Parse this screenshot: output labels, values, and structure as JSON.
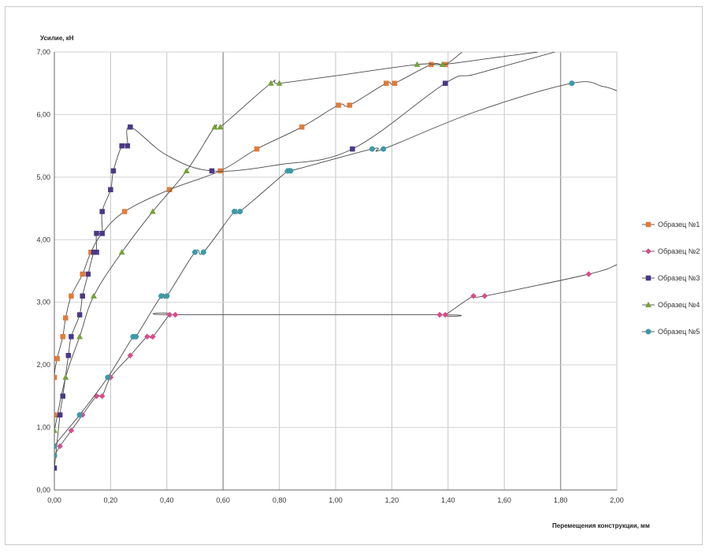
{
  "chart_data": {
    "type": "line",
    "title": "",
    "ylabel": "Усилие, кН",
    "xlabel": "Перемещения конструкции, мм",
    "xlim": [
      0,
      2.0
    ],
    "ylim": [
      0,
      7.0
    ],
    "x_ticks": [
      "0,00",
      "0,20",
      "0,40",
      "0,60",
      "0,80",
      "1,00",
      "1,20",
      "1,40",
      "1,60",
      "1,80",
      "2,00"
    ],
    "y_ticks": [
      "0,00",
      "1,00",
      "2,00",
      "3,00",
      "4,00",
      "5,00",
      "6,00",
      "7,00"
    ],
    "grid": "vertical",
    "legend_position": "right",
    "series": [
      {
        "name": "Образец №1",
        "color": "#E07B39",
        "marker": "square",
        "points": [
          [
            0,
            0.55
          ],
          [
            0,
            1.2
          ],
          [
            0,
            1.8
          ],
          [
            0.01,
            2.1
          ],
          [
            0.03,
            2.45
          ],
          [
            0.04,
            2.75
          ],
          [
            0.06,
            3.1
          ],
          [
            0.1,
            3.45
          ],
          [
            0.13,
            3.8
          ],
          [
            0.17,
            4.1
          ],
          [
            0.25,
            4.45
          ],
          [
            0.41,
            4.8
          ],
          [
            0.59,
            5.1
          ],
          [
            0.72,
            5.45
          ],
          [
            0.88,
            5.8
          ],
          [
            1.01,
            6.15
          ],
          [
            1.05,
            6.15
          ],
          [
            1.18,
            6.5
          ],
          [
            1.21,
            6.5
          ],
          [
            1.34,
            6.8
          ],
          [
            1.39,
            6.8
          ]
        ],
        "curve": [
          [
            0,
            0.55
          ],
          [
            0,
            1.2
          ],
          [
            0,
            1.8
          ],
          [
            0.01,
            2.1
          ],
          [
            0.03,
            2.45
          ],
          [
            0.04,
            2.75
          ],
          [
            0.06,
            3.1
          ],
          [
            0.1,
            3.45
          ],
          [
            0.13,
            3.8
          ],
          [
            0.17,
            4.1
          ],
          [
            0.25,
            4.45
          ],
          [
            0.41,
            4.8
          ],
          [
            0.59,
            5.1
          ],
          [
            0.72,
            5.45
          ],
          [
            0.88,
            5.8
          ],
          [
            1.01,
            6.15
          ],
          [
            1.05,
            6.15
          ],
          [
            1.18,
            6.5
          ],
          [
            1.21,
            6.5
          ],
          [
            1.34,
            6.8
          ],
          [
            1.39,
            6.8
          ],
          [
            1.45,
            7.0
          ]
        ]
      },
      {
        "name": "Образец №2",
        "color": "#D94C8A",
        "marker": "diamond",
        "points": [
          [
            0,
            0.55
          ],
          [
            0.02,
            0.7
          ],
          [
            0.06,
            0.95
          ],
          [
            0.1,
            1.2
          ],
          [
            0.15,
            1.5
          ],
          [
            0.17,
            1.5
          ],
          [
            0.2,
            1.8
          ],
          [
            0.27,
            2.15
          ],
          [
            0.33,
            2.45
          ],
          [
            0.35,
            2.45
          ],
          [
            0.41,
            2.8
          ],
          [
            0.43,
            2.8
          ],
          [
            1.37,
            2.8
          ],
          [
            1.39,
            2.8
          ],
          [
            1.49,
            3.1
          ],
          [
            1.53,
            3.1
          ],
          [
            1.9,
            3.45
          ]
        ],
        "curve": [
          [
            0,
            0.55
          ],
          [
            0.02,
            0.7
          ],
          [
            0.06,
            0.95
          ],
          [
            0.1,
            1.2
          ],
          [
            0.15,
            1.5
          ],
          [
            0.17,
            1.5
          ],
          [
            0.2,
            1.8
          ],
          [
            0.27,
            2.15
          ],
          [
            0.33,
            2.45
          ],
          [
            0.35,
            2.45
          ],
          [
            0.41,
            2.8
          ],
          [
            0.43,
            2.8
          ],
          [
            1.37,
            2.8
          ],
          [
            1.39,
            2.8
          ],
          [
            1.49,
            3.1
          ],
          [
            1.53,
            3.1
          ],
          [
            1.9,
            3.45
          ],
          [
            2.0,
            3.6
          ]
        ]
      },
      {
        "name": "Образец №3",
        "color": "#4A3886",
        "marker": "square",
        "points": [
          [
            0,
            0.35
          ],
          [
            0.02,
            1.2
          ],
          [
            0.03,
            1.5
          ],
          [
            0.05,
            2.15
          ],
          [
            0.06,
            2.45
          ],
          [
            0.09,
            2.8
          ],
          [
            0.1,
            3.1
          ],
          [
            0.12,
            3.45
          ],
          [
            0.14,
            3.8
          ],
          [
            0.15,
            3.8
          ],
          [
            0.15,
            4.1
          ],
          [
            0.17,
            4.1
          ],
          [
            0.17,
            4.45
          ],
          [
            0.2,
            4.8
          ],
          [
            0.21,
            5.1
          ],
          [
            0.24,
            5.5
          ],
          [
            0.26,
            5.5
          ],
          [
            0.27,
            5.8
          ],
          [
            0.56,
            5.1
          ],
          [
            1.06,
            5.45
          ],
          [
            1.39,
            6.5
          ]
        ],
        "curve": [
          [
            0,
            0.35
          ],
          [
            0.02,
            1.2
          ],
          [
            0.03,
            1.5
          ],
          [
            0.05,
            2.15
          ],
          [
            0.06,
            2.45
          ],
          [
            0.09,
            2.8
          ],
          [
            0.1,
            3.1
          ],
          [
            0.12,
            3.45
          ],
          [
            0.14,
            3.8
          ],
          [
            0.15,
            3.8
          ],
          [
            0.15,
            4.1
          ],
          [
            0.17,
            4.1
          ],
          [
            0.17,
            4.45
          ],
          [
            0.2,
            4.8
          ],
          [
            0.21,
            5.1
          ],
          [
            0.24,
            5.5
          ],
          [
            0.26,
            5.5
          ],
          [
            0.27,
            5.8
          ],
          [
            0.4,
            5.35
          ],
          [
            0.56,
            5.1
          ],
          [
            0.8,
            5.2
          ],
          [
            1.06,
            5.45
          ],
          [
            1.39,
            6.5
          ],
          [
            1.5,
            6.65
          ],
          [
            1.78,
            7.0
          ]
        ]
      },
      {
        "name": "Образец №4",
        "color": "#77A23C",
        "marker": "triangle",
        "points": [
          [
            0,
            0.95
          ],
          [
            0.04,
            1.8
          ],
          [
            0.09,
            2.45
          ],
          [
            0.14,
            3.1
          ],
          [
            0.24,
            3.8
          ],
          [
            0.35,
            4.45
          ],
          [
            0.47,
            5.1
          ],
          [
            0.57,
            5.8
          ],
          [
            0.59,
            5.8
          ],
          [
            0.77,
            6.5
          ],
          [
            0.8,
            6.5
          ],
          [
            1.29,
            6.8
          ],
          [
            1.38,
            6.8
          ]
        ],
        "curve": [
          [
            0,
            0.95
          ],
          [
            0.04,
            1.8
          ],
          [
            0.09,
            2.45
          ],
          [
            0.14,
            3.1
          ],
          [
            0.24,
            3.8
          ],
          [
            0.35,
            4.45
          ],
          [
            0.47,
            5.1
          ],
          [
            0.57,
            5.8
          ],
          [
            0.59,
            5.8
          ],
          [
            0.77,
            6.5
          ],
          [
            0.8,
            6.5
          ],
          [
            1.0,
            6.62
          ],
          [
            1.29,
            6.8
          ],
          [
            1.38,
            6.8
          ],
          [
            1.55,
            6.9
          ],
          [
            1.72,
            7.0
          ]
        ]
      },
      {
        "name": "Образец №5",
        "color": "#3C9AA8",
        "marker": "circle",
        "points": [
          [
            0,
            0.55
          ],
          [
            0,
            0.7
          ],
          [
            0.09,
            1.2
          ],
          [
            0.19,
            1.8
          ],
          [
            0.28,
            2.45
          ],
          [
            0.29,
            2.45
          ],
          [
            0.38,
            3.1
          ],
          [
            0.4,
            3.1
          ],
          [
            0.5,
            3.8
          ],
          [
            0.53,
            3.8
          ],
          [
            0.64,
            4.45
          ],
          [
            0.66,
            4.45
          ],
          [
            0.83,
            5.1
          ],
          [
            0.84,
            5.1
          ],
          [
            1.13,
            5.45
          ],
          [
            1.17,
            5.45
          ],
          [
            1.84,
            6.5
          ]
        ],
        "curve": [
          [
            0,
            0.55
          ],
          [
            0,
            0.7
          ],
          [
            0.09,
            1.2
          ],
          [
            0.19,
            1.8
          ],
          [
            0.28,
            2.45
          ],
          [
            0.29,
            2.45
          ],
          [
            0.38,
            3.1
          ],
          [
            0.4,
            3.1
          ],
          [
            0.5,
            3.8
          ],
          [
            0.53,
            3.8
          ],
          [
            0.64,
            4.45
          ],
          [
            0.66,
            4.45
          ],
          [
            0.83,
            5.1
          ],
          [
            0.84,
            5.1
          ],
          [
            1.13,
            5.45
          ],
          [
            1.17,
            5.45
          ],
          [
            1.5,
            6.05
          ],
          [
            1.84,
            6.5
          ],
          [
            1.95,
            6.45
          ],
          [
            2.0,
            6.38
          ]
        ]
      }
    ]
  }
}
